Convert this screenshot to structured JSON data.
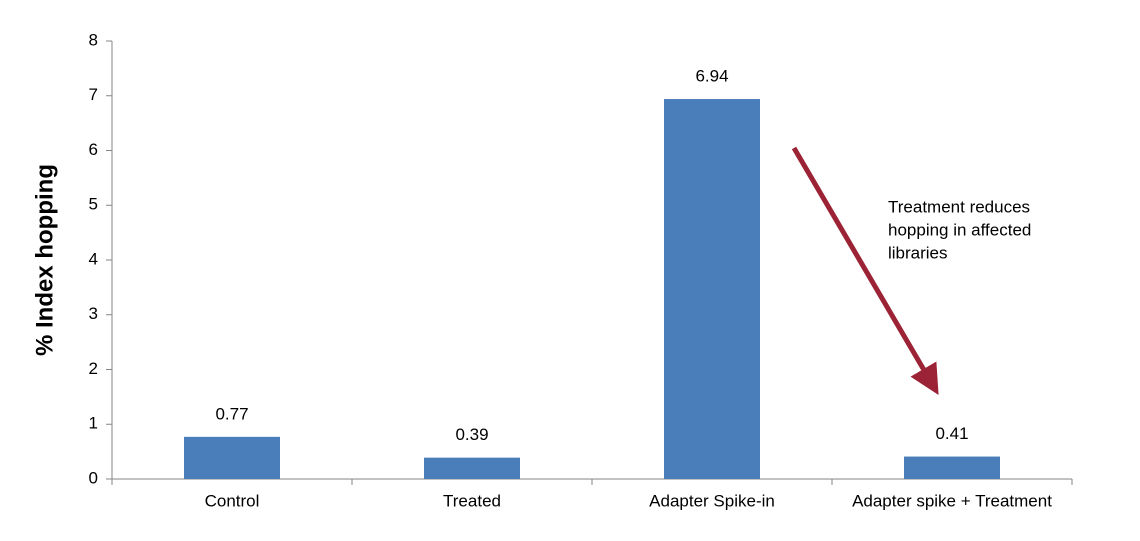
{
  "chart_data": {
    "type": "bar",
    "y_label": "% Index hopping",
    "categories": [
      "Control",
      "Treated",
      "Adapter Spike-in",
      "Adapter spike + Treatment"
    ],
    "values": [
      0.77,
      0.39,
      6.94,
      0.41
    ],
    "color": "#4a7ebb",
    "ylim": [
      0,
      8
    ],
    "yticks": [
      0,
      1,
      2,
      3,
      4,
      5,
      6,
      7,
      8
    ],
    "grid": false,
    "annotation": [
      "Treatment reduces",
      "hopping in affected",
      "libraries"
    ],
    "annotation_color": "#9b2335"
  }
}
